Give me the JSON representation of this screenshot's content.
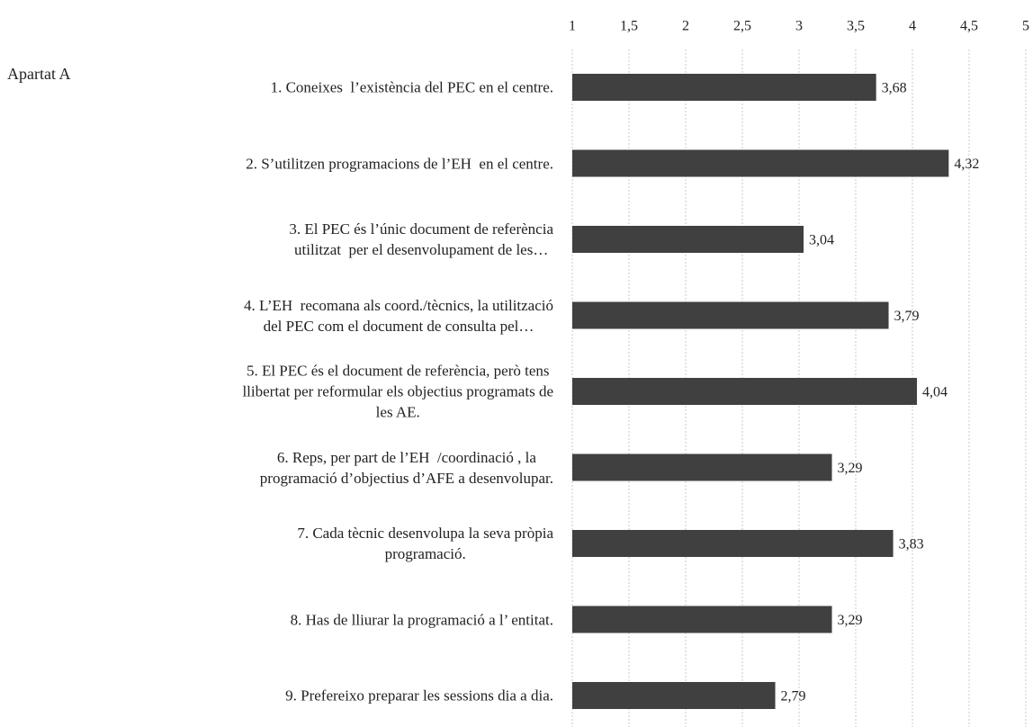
{
  "chart_data": {
    "type": "hbar",
    "annotation": "Apartat A",
    "categories": [
      "1. Coneixes  l’existència del PEC en el centre.",
      "2. S’utilitzen programacions de l’EH  en el centre.",
      "3. El PEC és l’únic document de referència\nutilitzat  per el desenvolupament de les…",
      "4. L’EH  recomana als coord./tècnics, la utilització\ndel PEC com el document de consulta pel…",
      "5. El PEC és el document de referència, però tens\nllibertat per reformular els objectius programats de\nles AE.",
      "6. Reps, per part de l’EH  /coordinació , la\nprogramació d’objectius d’AFE a desenvolupar.",
      "7. Cada tècnic desenvolupa la seva pròpia\nprogramació.",
      "8. Has de lliurar la programació a l’ entitat.",
      "9. Prefereixo preparar les sessions dia a dia."
    ],
    "values": [
      3.68,
      4.32,
      3.04,
      3.79,
      4.04,
      3.29,
      3.83,
      3.29,
      2.79
    ],
    "value_labels": [
      "3,68",
      "4,32",
      "3,04",
      "3,79",
      "4,04",
      "3,29",
      "3,83",
      "3,29",
      "2,79"
    ],
    "color": "#404040",
    "xlim": [
      1,
      5
    ],
    "xticks": [
      1,
      {
        "value": 1.5,
        "label": "1,5"
      },
      2,
      {
        "value": 2.5,
        "label": "2,5"
      },
      3,
      {
        "value": 3.5,
        "label": "3,5"
      },
      4,
      {
        "value": 4.5,
        "label": "4,5"
      },
      5
    ],
    "grid": true
  }
}
